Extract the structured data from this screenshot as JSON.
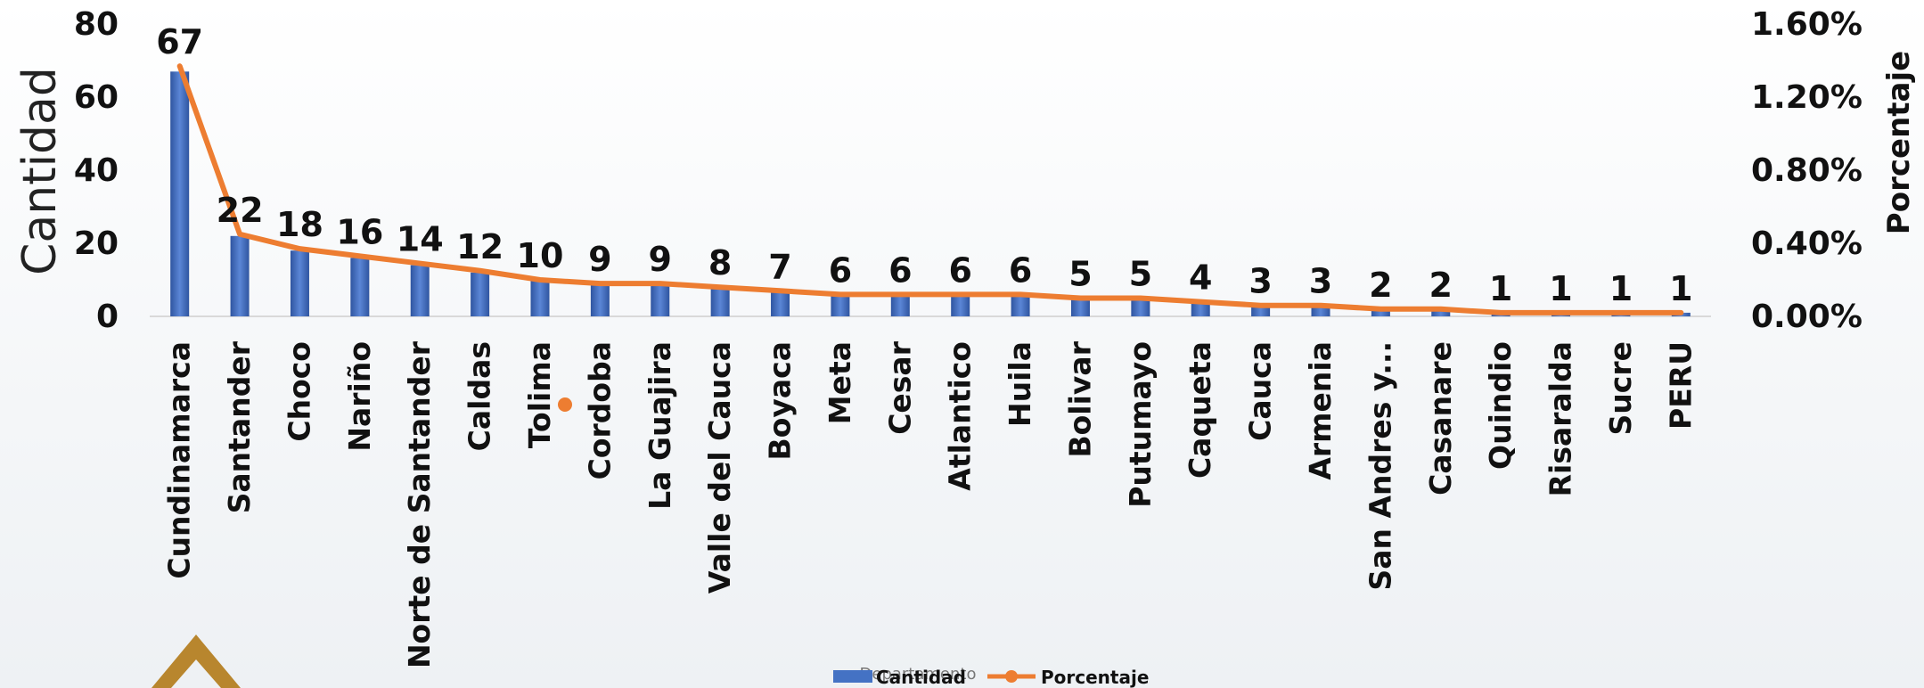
{
  "chart_data": {
    "type": "bar",
    "combo": "bar+line",
    "categories": [
      "Cundinamarca",
      "Santander",
      "Choco",
      "Nariño",
      "Norte de Santander",
      "Caldas",
      "Tolima",
      "Cordoba",
      "La Guajira",
      "Valle del Cauca",
      "Boyaca",
      "Meta",
      "Cesar",
      "Atlantico",
      "Huila",
      "Bolivar",
      "Putumayo",
      "Caqueta",
      "Cauca",
      "Armenia",
      "San Andres y...",
      "Casanare",
      "Quindio",
      "Risaralda",
      "Sucre",
      "PERU"
    ],
    "series": [
      {
        "name": "Cantidad",
        "type": "bar",
        "axis": "left",
        "values": [
          67,
          22,
          18,
          16,
          14,
          12,
          10,
          9,
          9,
          8,
          7,
          6,
          6,
          6,
          6,
          5,
          5,
          4,
          3,
          3,
          2,
          2,
          1,
          1,
          1,
          1
        ],
        "data_labels": [
          "67",
          "22",
          "18",
          "16",
          "14",
          "12",
          "10",
          "9",
          "9",
          "8",
          "7",
          "6",
          "6",
          "6",
          "6",
          "5",
          "5",
          "4",
          "3",
          "3",
          "2",
          "2",
          "1",
          "1",
          "1",
          "1"
        ]
      },
      {
        "name": "Porcentaje",
        "type": "line",
        "axis": "right",
        "values": [
          1.37,
          0.45,
          0.37,
          0.33,
          0.29,
          0.25,
          0.2,
          0.18,
          0.18,
          0.16,
          0.14,
          0.12,
          0.12,
          0.12,
          0.12,
          0.1,
          0.1,
          0.08,
          0.06,
          0.06,
          0.04,
          0.04,
          0.02,
          0.02,
          0.02,
          0.02
        ]
      }
    ],
    "ylabel": "Cantidad",
    "y2label": "Porcentaje",
    "xlabel": "Departamento",
    "ylim": [
      0,
      80
    ],
    "y2lim": [
      0,
      1.6
    ],
    "y_ticks": [
      "0",
      "20",
      "40",
      "60",
      "80"
    ],
    "y2_ticks": [
      "0.00%",
      "0.40%",
      "0.80%",
      "1.20%",
      "1.60%"
    ],
    "legend": {
      "placement": "bottom-center",
      "items": [
        "Cantidad",
        "Porcentaje"
      ]
    },
    "grid": false,
    "colors": {
      "bar": "#4472C4",
      "bar_dark": "#2F55A0",
      "line": "#ED7D31",
      "logo": "#B8862E"
    }
  }
}
